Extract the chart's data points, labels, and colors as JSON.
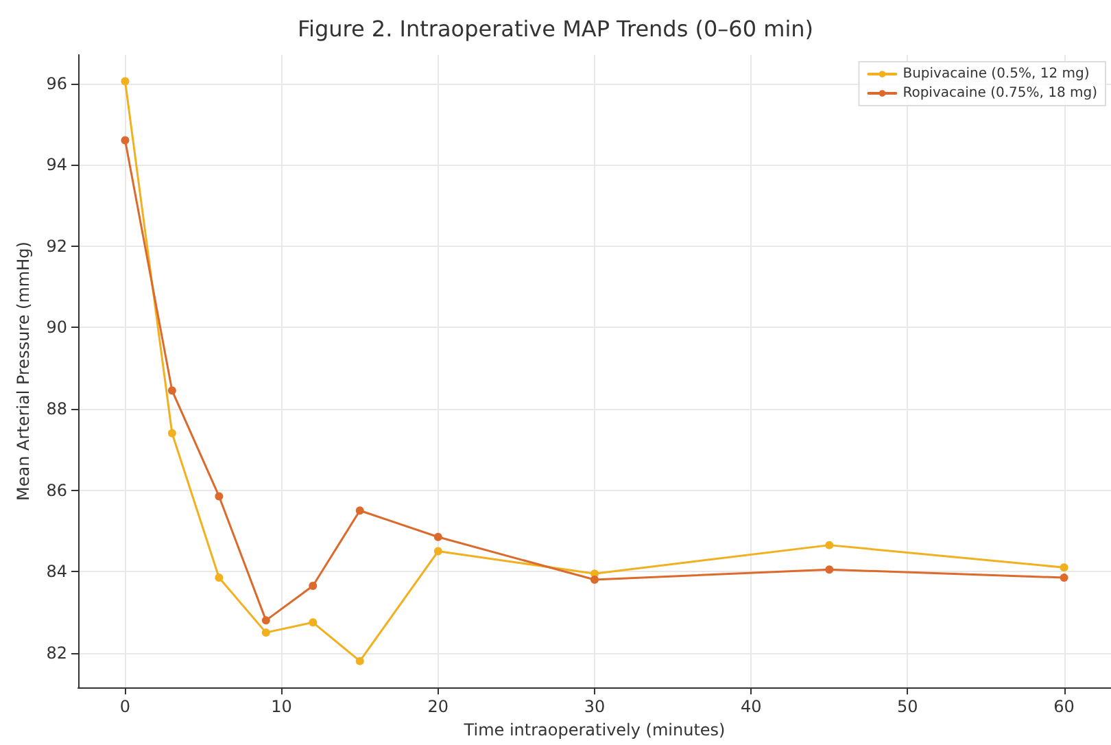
{
  "chart_data": {
    "type": "line",
    "title": "Figure 2. Intraoperative MAP Trends (0–60 min)",
    "xlabel": "Time intraoperatively (minutes)",
    "ylabel": "Mean Arterial Pressure (mmHg)",
    "x": [
      0,
      3,
      6,
      9,
      12,
      15,
      20,
      30,
      45,
      60
    ],
    "series": [
      {
        "name": "Bupivacaine (0.5%, 12 mg)",
        "color": "#f2b01e",
        "values": [
          96.05,
          87.4,
          83.85,
          82.5,
          82.75,
          81.8,
          84.5,
          83.95,
          84.65,
          84.1
        ]
      },
      {
        "name": "Ropivacaine (0.75%, 18 mg)",
        "color": "#dc6a2c",
        "values": [
          94.6,
          88.45,
          85.85,
          82.8,
          83.65,
          85.5,
          84.85,
          83.8,
          84.05,
          83.85
        ]
      }
    ],
    "xlim": [
      -3,
      63
    ],
    "xticks": [
      0,
      10,
      20,
      30,
      40,
      50,
      60
    ],
    "ylim": [
      81.15,
      96.7
    ],
    "yticks": [
      82,
      84,
      86,
      88,
      90,
      92,
      94,
      96
    ],
    "grid": true,
    "legend": "top right",
    "marker": "circle",
    "line_style": "solid"
  }
}
